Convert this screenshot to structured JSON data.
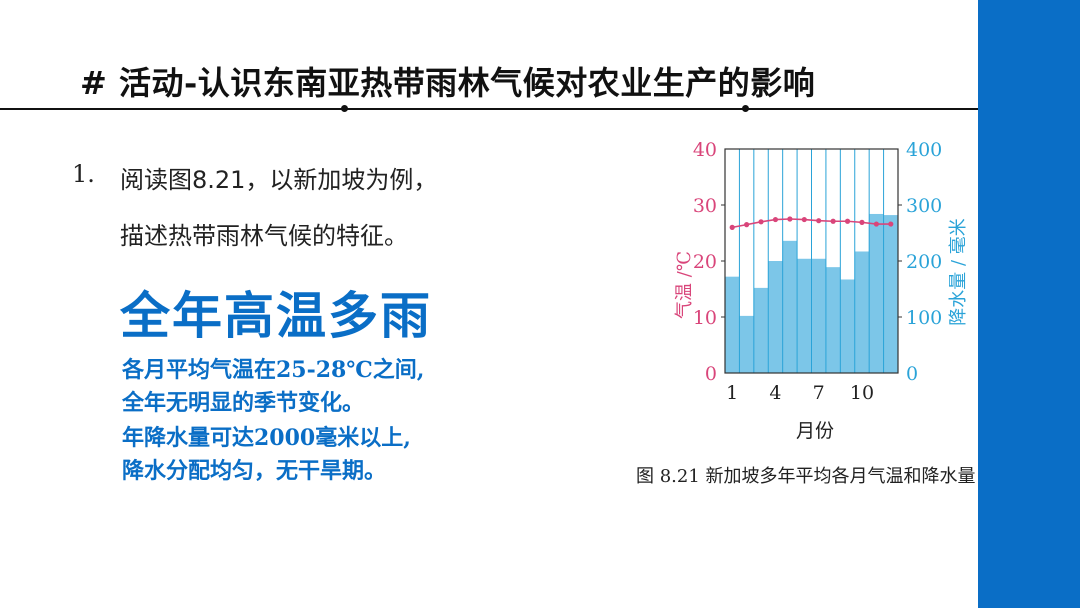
{
  "title": "# 活动-认识东南亚热带雨林气候对农业生产的影响",
  "question": {
    "number": "1.",
    "line1": "阅读图8.21，以新加坡为例，",
    "line2": "描述热带雨林气候的特征。"
  },
  "answer": {
    "headline": "全年高温多雨",
    "lines": [
      "各月平均气温在25-28℃之间,",
      "全年无明显的季节变化。",
      "年降水量可达2000毫米以上,",
      "降水分配均匀，无干旱期。"
    ]
  },
  "colors": {
    "accent": "#0a6ec6",
    "bar": "#7cc6e8",
    "temp": "#d9457a",
    "rain_axis": "#2aa3d8"
  },
  "chart_data": {
    "type": "bar",
    "title": "",
    "caption": "图 8.21    新加坡多年平均各月气温和降水量",
    "xlabel": "月份",
    "ylabel_left": "气温 /℃",
    "ylabel_right": "降水量 / 毫米",
    "x": [
      1,
      2,
      3,
      4,
      5,
      6,
      7,
      8,
      9,
      10,
      11,
      12
    ],
    "x_ticks": [
      "1",
      "4",
      "7",
      "10"
    ],
    "x_tick_values": [
      1,
      4,
      7,
      10
    ],
    "ylim_left": [
      0,
      40
    ],
    "ylim_right": [
      0,
      400
    ],
    "y_ticks_left": [
      "0",
      "10",
      "20",
      "30",
      "40"
    ],
    "y_ticks_right": [
      "0",
      "100",
      "200",
      "300",
      "400"
    ],
    "grid": true,
    "series": [
      {
        "type": "bar",
        "axis": "right",
        "values": [
          172,
          102,
          152,
          200,
          236,
          204,
          204,
          189,
          167,
          217,
          284,
          282
        ]
      },
      {
        "type": "line",
        "axis": "left",
        "values": [
          26.0,
          26.5,
          27.0,
          27.4,
          27.5,
          27.4,
          27.2,
          27.1,
          27.1,
          26.9,
          26.6,
          26.6
        ]
      }
    ]
  }
}
